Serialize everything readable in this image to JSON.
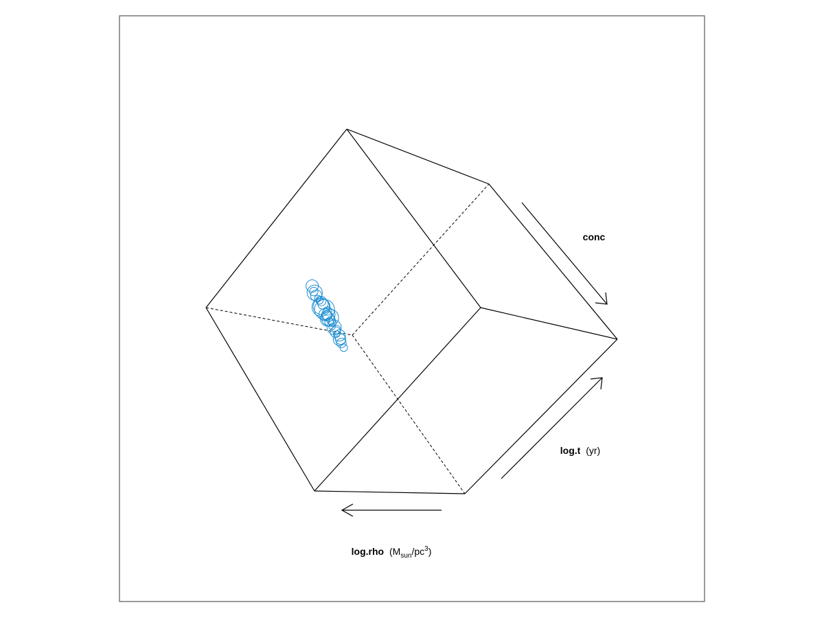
{
  "chart_data": {
    "type": "scatter",
    "subtype": "3d-bubble",
    "title": "",
    "axes": {
      "rho": {
        "name": "log.rho",
        "unit_prefix": "M",
        "unit_sub": "sun",
        "unit_mid": "/pc",
        "unit_sup": "3",
        "direction": "toward-left"
      },
      "t": {
        "name": "log.t",
        "unit": "(yr)",
        "direction": "toward-upper-right"
      },
      "conc": {
        "name": "conc",
        "unit": "",
        "direction": "toward-lower-right"
      }
    },
    "grid": false,
    "legend": "none",
    "marker": "open-circle",
    "point_color": "#1e8fd2",
    "points": [
      [
        0.5,
        0.4,
        0.6,
        0.3
      ],
      [
        0.55,
        0.45,
        0.55,
        0.5
      ],
      [
        0.45,
        0.35,
        0.62,
        0.2
      ],
      [
        0.6,
        0.5,
        0.5,
        0.8
      ],
      [
        0.4,
        0.3,
        0.65,
        0.4
      ],
      [
        0.52,
        0.42,
        0.58,
        0.6
      ],
      [
        0.48,
        0.38,
        0.52,
        0.35
      ],
      [
        0.62,
        0.55,
        0.45,
        0.25
      ],
      [
        0.35,
        0.25,
        0.7,
        0.5
      ],
      [
        0.58,
        0.48,
        0.48,
        0.7
      ],
      [
        0.44,
        0.36,
        0.56,
        0.3
      ],
      [
        0.66,
        0.58,
        0.42,
        0.45
      ],
      [
        0.38,
        0.28,
        0.66,
        0.2
      ],
      [
        0.54,
        0.46,
        0.5,
        0.9
      ],
      [
        0.5,
        0.44,
        0.54,
        0.55
      ],
      [
        0.46,
        0.4,
        0.6,
        0.25
      ],
      [
        0.7,
        0.62,
        0.4,
        0.3
      ],
      [
        0.32,
        0.22,
        0.72,
        0.35
      ],
      [
        0.56,
        0.5,
        0.46,
        0.4
      ],
      [
        0.42,
        0.34,
        0.62,
        0.6
      ],
      [
        0.64,
        0.56,
        0.44,
        0.2
      ],
      [
        0.36,
        0.3,
        0.68,
        0.45
      ],
      [
        0.52,
        0.48,
        0.52,
        0.3
      ],
      [
        0.48,
        0.42,
        0.56,
        0.75
      ],
      [
        0.72,
        0.66,
        0.36,
        0.5
      ],
      [
        0.3,
        0.2,
        0.76,
        0.25
      ],
      [
        0.58,
        0.52,
        0.44,
        0.35
      ],
      [
        0.4,
        0.34,
        0.64,
        0.3
      ],
      [
        0.68,
        0.6,
        0.4,
        0.65
      ],
      [
        0.34,
        0.26,
        0.7,
        0.4
      ]
    ],
    "point_fields": [
      "rho",
      "t",
      "conc",
      "size"
    ]
  }
}
